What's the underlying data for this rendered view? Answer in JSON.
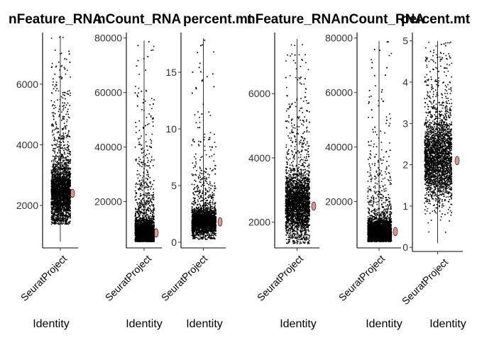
{
  "chart_data": [
    {
      "type": "scatter",
      "title": "nFeature_RNA",
      "category": "SeuratProject",
      "xlabel": "Identity",
      "ylim": [
        600,
        7700
      ],
      "yticks": [
        2000,
        4000,
        6000
      ],
      "ytick_labels": [
        "2000",
        "4000",
        "6000"
      ],
      "point_range": [
        800,
        7600
      ],
      "distribution": {
        "median": 2400,
        "spread": 500,
        "lower": 1400,
        "tail": 1500
      }
    },
    {
      "type": "scatter",
      "title": "nCount_RNA",
      "category": "SeuratProject",
      "xlabel": "Identity",
      "ylim": [
        3000,
        82000
      ],
      "yticks": [
        20000,
        40000,
        60000,
        80000
      ],
      "ytick_labels": [
        "20000",
        "40000",
        "60000",
        "80000"
      ],
      "point_range": [
        5500,
        79000
      ],
      "distribution": {
        "median": 8500,
        "spread": 2500,
        "lower": 5500,
        "tail": 14000
      }
    },
    {
      "type": "scatter",
      "title": "percent.mt",
      "category": "SeuratProject",
      "xlabel": "Identity",
      "ylim": [
        -0.5,
        18.5
      ],
      "yticks": [
        0,
        5,
        10,
        15
      ],
      "ytick_labels": [
        "0",
        "5",
        "10",
        "15"
      ],
      "point_range": [
        0.3,
        18
      ],
      "distribution": {
        "median": 1.8,
        "spread": 0.6,
        "lower": 0.3,
        "tail": 2.5
      }
    },
    {
      "type": "scatter",
      "title": "nFeature_RNA",
      "category": "SeuratProject",
      "xlabel": "Identity",
      "ylim": [
        1200,
        7900
      ],
      "yticks": [
        2000,
        4000,
        6000
      ],
      "ytick_labels": [
        "2000",
        "4000",
        "6000"
      ],
      "point_range": [
        1350,
        7700
      ],
      "distribution": {
        "median": 2500,
        "spread": 500,
        "lower": 1350,
        "tail": 1600
      }
    },
    {
      "type": "scatter",
      "title": "nCount_RNA",
      "category": "SeuratProject",
      "xlabel": "Identity",
      "ylim": [
        3000,
        82000
      ],
      "yticks": [
        20000,
        40000,
        60000,
        80000
      ],
      "ytick_labels": [
        "20000",
        "40000",
        "60000",
        "80000"
      ],
      "point_range": [
        5500,
        79000
      ],
      "distribution": {
        "median": 9000,
        "spread": 2500,
        "lower": 5500,
        "tail": 13000
      }
    },
    {
      "type": "scatter",
      "title": "percent.mt",
      "category": "SeuratProject",
      "xlabel": "Identity",
      "ylim": [
        -0.1,
        5.2
      ],
      "yticks": [
        0,
        1,
        2,
        3,
        4,
        5
      ],
      "ytick_labels": [
        "0",
        "1",
        "2",
        "3",
        "4",
        "5"
      ],
      "point_range": [
        0.1,
        5
      ],
      "distribution": {
        "median": 2.1,
        "spread": 0.5,
        "lower": 0.1,
        "tail": 1.4
      }
    }
  ]
}
